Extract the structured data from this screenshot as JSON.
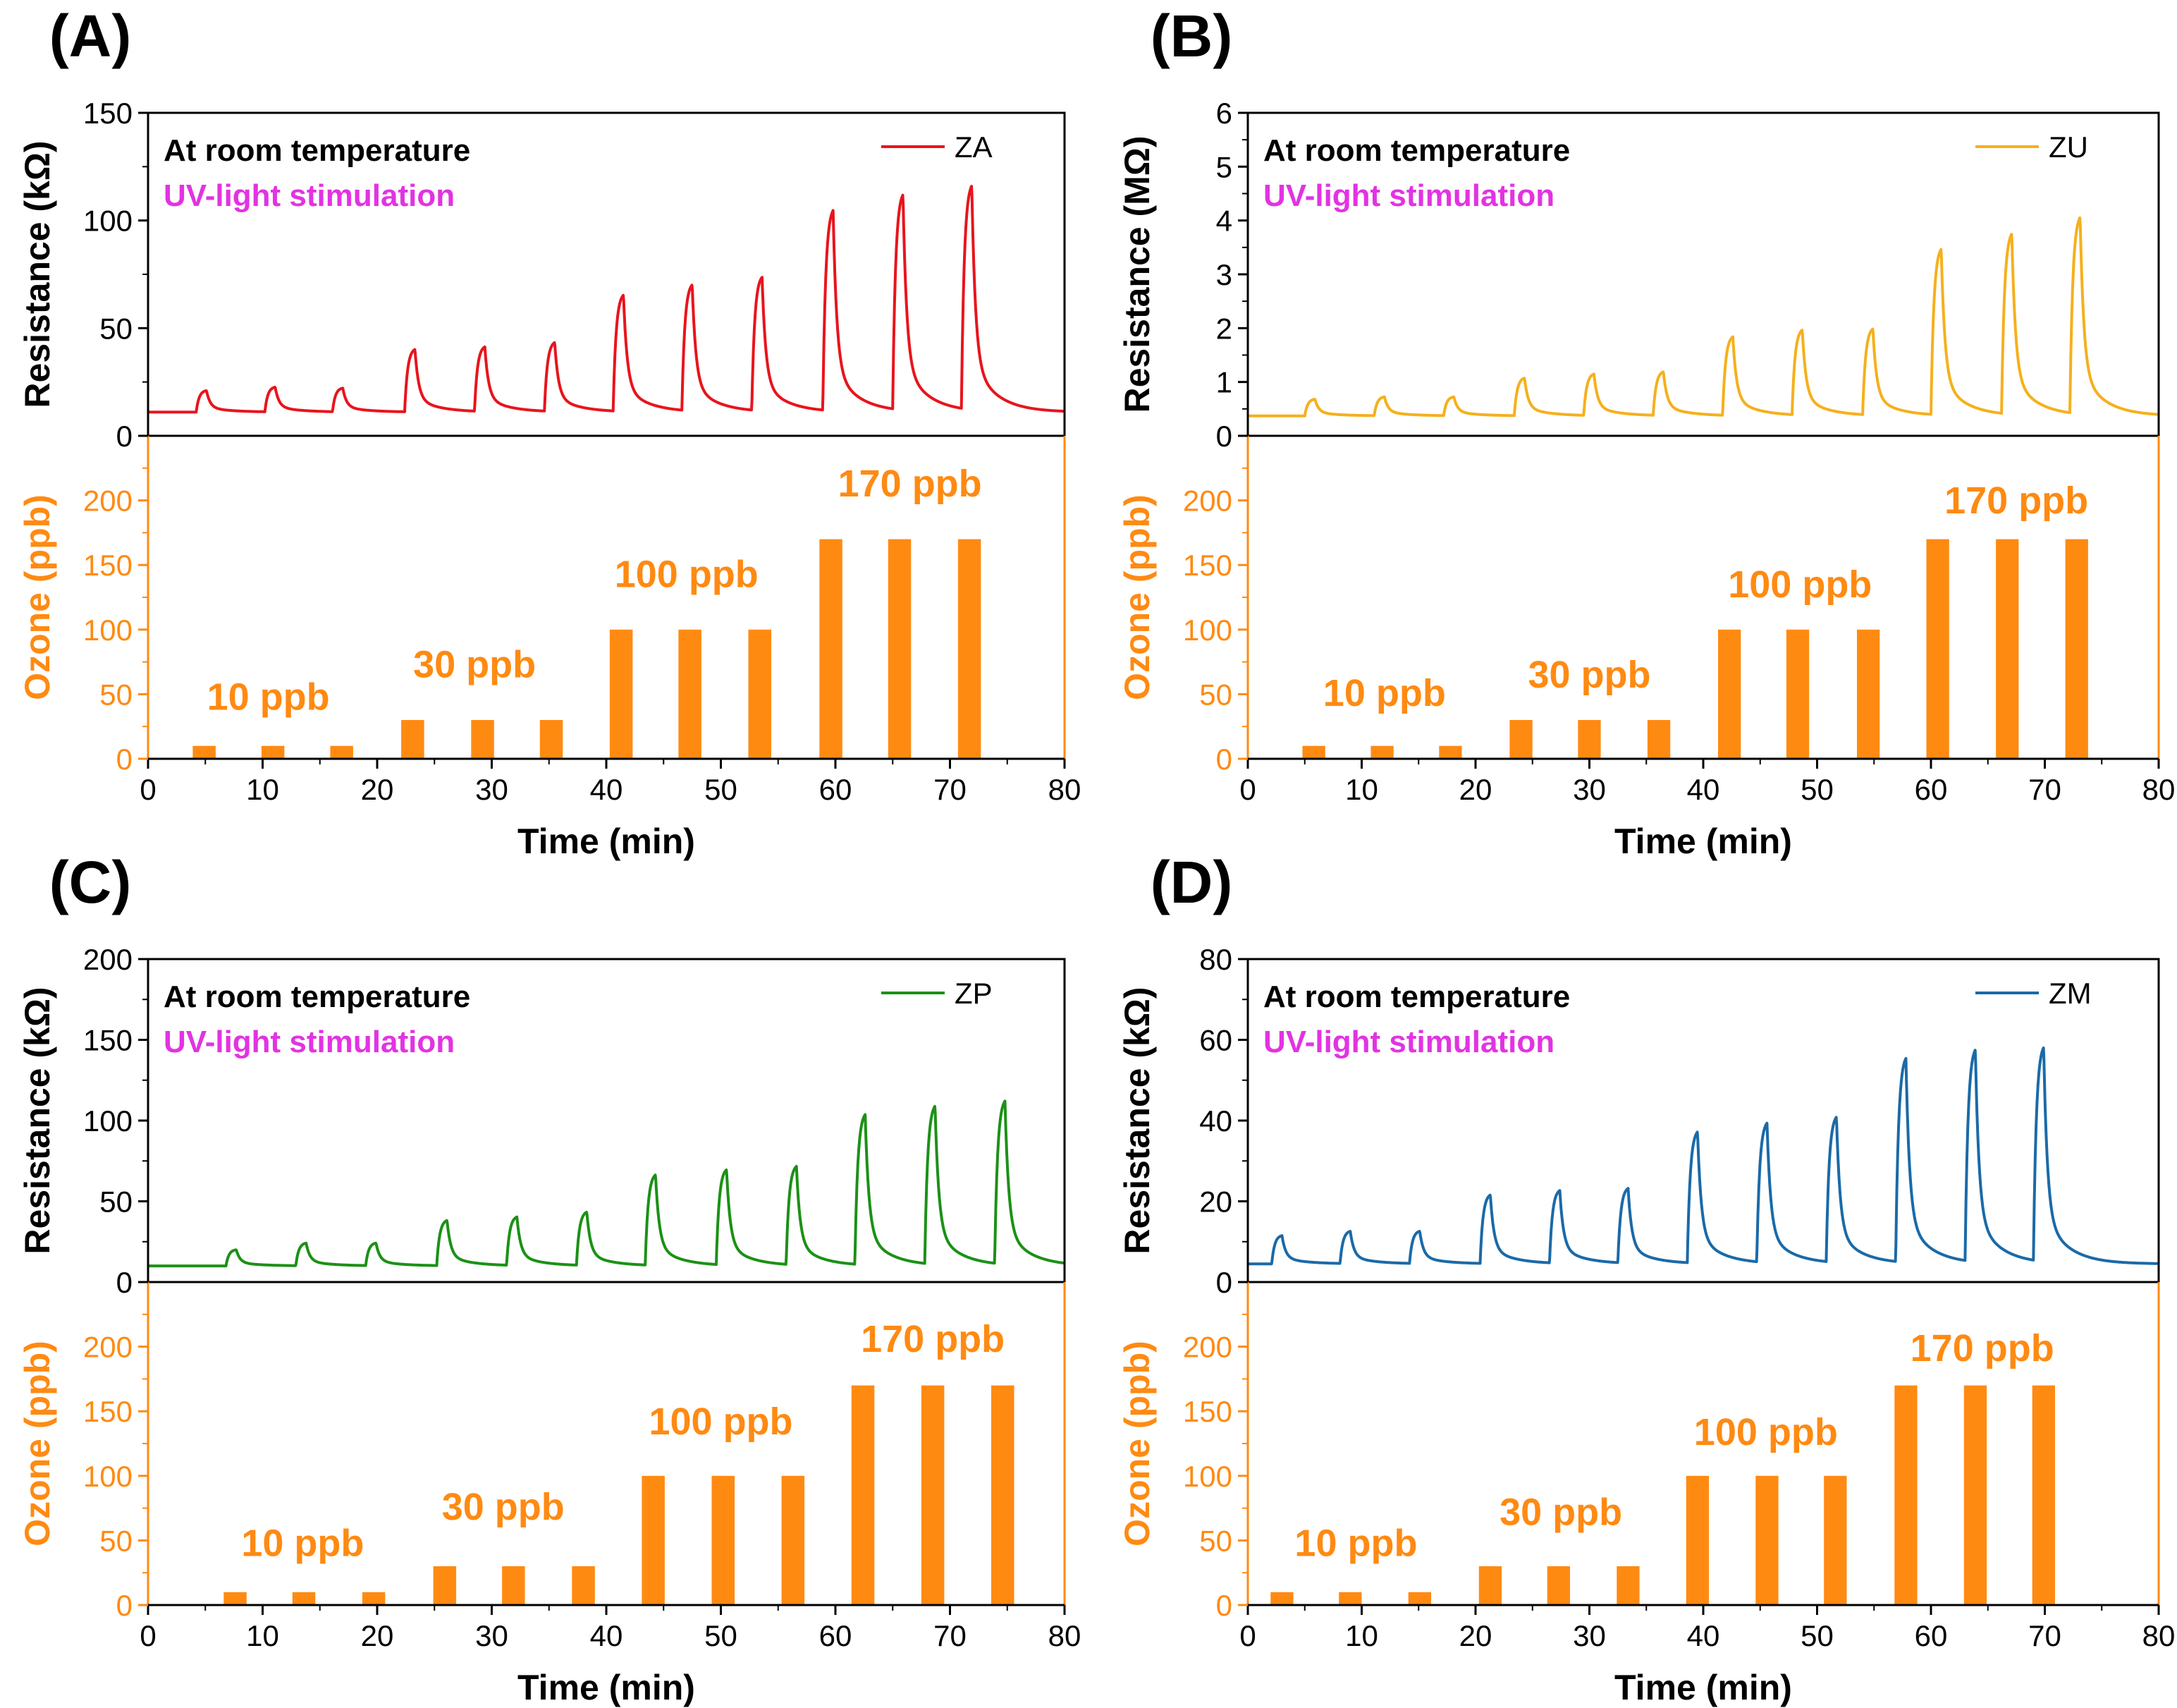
{
  "chart_data": [
    {
      "type": "line+bar",
      "panel_label": "(A)",
      "top": {
        "series_name": "ZA",
        "color": "#e8141c",
        "ylabel": "Resistance (kΩ)",
        "ylim": [
          0,
          150
        ],
        "yticks": [
          0,
          50,
          100,
          150
        ],
        "annotations": [
          "At room temperature",
          "UV-light stimulation"
        ],
        "baseline": 11,
        "pulses": [
          {
            "start": 4.2,
            "peak": 21
          },
          {
            "start": 10.2,
            "peak": 22.5
          },
          {
            "start": 16.1,
            "peak": 22
          },
          {
            "start": 22.4,
            "peak": 40
          },
          {
            "start": 28.5,
            "peak": 41
          },
          {
            "start": 34.6,
            "peak": 43
          },
          {
            "start": 40.6,
            "peak": 65
          },
          {
            "start": 46.6,
            "peak": 69.5
          },
          {
            "start": 52.7,
            "peak": 73
          },
          {
            "start": 58.9,
            "peak": 104
          },
          {
            "start": 65.0,
            "peak": 111
          },
          {
            "start": 71.0,
            "peak": 115
          }
        ]
      },
      "bottom": {
        "ylabel": "Ozone (ppb)",
        "ylim": [
          0,
          250
        ],
        "yticks": [
          0,
          50,
          100,
          150,
          200
        ],
        "bar_color": "#ff8a12",
        "bars": [
          {
            "x": 4.9,
            "value": 10
          },
          {
            "x": 10.9,
            "value": 10
          },
          {
            "x": 16.9,
            "value": 10
          },
          {
            "x": 23.1,
            "value": 30
          },
          {
            "x": 29.2,
            "value": 30
          },
          {
            "x": 35.2,
            "value": 30
          },
          {
            "x": 41.3,
            "value": 100
          },
          {
            "x": 47.3,
            "value": 100
          },
          {
            "x": 53.4,
            "value": 100
          },
          {
            "x": 59.6,
            "value": 170
          },
          {
            "x": 65.6,
            "value": 170
          },
          {
            "x": 71.7,
            "value": 170
          }
        ],
        "labels": [
          {
            "text": "10 ppb",
            "x": 10.5,
            "y": 38
          },
          {
            "text": "30 ppb",
            "x": 28.5,
            "y": 63
          },
          {
            "text": "100 ppb",
            "x": 47.0,
            "y": 133
          },
          {
            "text": "170 ppb",
            "x": 66.5,
            "y": 203
          }
        ]
      },
      "xlabel": "Time (min)",
      "xlim": [
        0,
        80
      ],
      "xticks": [
        0,
        10,
        20,
        30,
        40,
        50,
        60,
        70,
        80
      ]
    },
    {
      "type": "line+bar",
      "panel_label": "(B)",
      "top": {
        "series_name": "ZU",
        "color": "#f5b01c",
        "ylabel": "Resistance (MΩ)",
        "ylim": [
          0,
          6
        ],
        "yticks": [
          0,
          1,
          2,
          3,
          4,
          5,
          6
        ],
        "annotations": [
          "At room temperature",
          "UV-light stimulation"
        ],
        "baseline": 0.37,
        "pulses": [
          {
            "start": 5.0,
            "peak": 0.68
          },
          {
            "start": 11.1,
            "peak": 0.72
          },
          {
            "start": 17.2,
            "peak": 0.72
          },
          {
            "start": 23.4,
            "peak": 1.07
          },
          {
            "start": 29.5,
            "peak": 1.14
          },
          {
            "start": 35.6,
            "peak": 1.18
          },
          {
            "start": 41.7,
            "peak": 1.83
          },
          {
            "start": 47.8,
            "peak": 1.95
          },
          {
            "start": 54.0,
            "peak": 1.97
          },
          {
            "start": 60.0,
            "peak": 3.45
          },
          {
            "start": 66.2,
            "peak": 3.72
          },
          {
            "start": 72.2,
            "peak": 4.02
          }
        ]
      },
      "bottom": {
        "ylabel": "Ozone (ppb)",
        "ylim": [
          0,
          250
        ],
        "yticks": [
          0,
          50,
          100,
          150,
          200
        ],
        "bar_color": "#ff8a12",
        "bars": [
          {
            "x": 5.8,
            "value": 10
          },
          {
            "x": 11.8,
            "value": 10
          },
          {
            "x": 17.8,
            "value": 10
          },
          {
            "x": 24.0,
            "value": 30
          },
          {
            "x": 30.0,
            "value": 30
          },
          {
            "x": 36.1,
            "value": 30
          },
          {
            "x": 42.3,
            "value": 100
          },
          {
            "x": 48.3,
            "value": 100
          },
          {
            "x": 54.5,
            "value": 100
          },
          {
            "x": 60.6,
            "value": 170
          },
          {
            "x": 66.7,
            "value": 170
          },
          {
            "x": 72.8,
            "value": 170
          }
        ],
        "labels": [
          {
            "text": "10 ppb",
            "x": 12.0,
            "y": 41
          },
          {
            "text": "30 ppb",
            "x": 30.0,
            "y": 55
          },
          {
            "text": "100 ppb",
            "x": 48.5,
            "y": 125
          },
          {
            "text": "170 ppb",
            "x": 67.5,
            "y": 190
          }
        ]
      },
      "xlabel": "Time (min)",
      "xlim": [
        0,
        80
      ],
      "xticks": [
        0,
        10,
        20,
        30,
        40,
        50,
        60,
        70,
        80
      ]
    },
    {
      "type": "line+bar",
      "panel_label": "(C)",
      "top": {
        "series_name": "ZP",
        "color": "#1b9116",
        "ylabel": "Resistance (kΩ)",
        "ylim": [
          0,
          200
        ],
        "yticks": [
          0,
          50,
          100,
          150,
          200
        ],
        "annotations": [
          "At room temperature",
          "UV-light stimulation"
        ],
        "baseline": 10,
        "pulses": [
          {
            "start": 6.8,
            "peak": 20
          },
          {
            "start": 12.9,
            "peak": 24
          },
          {
            "start": 19.0,
            "peak": 24
          },
          {
            "start": 25.2,
            "peak": 38
          },
          {
            "start": 31.3,
            "peak": 40
          },
          {
            "start": 37.4,
            "peak": 43
          },
          {
            "start": 43.4,
            "peak": 66
          },
          {
            "start": 49.6,
            "peak": 69
          },
          {
            "start": 55.7,
            "peak": 71
          },
          {
            "start": 61.7,
            "peak": 103
          },
          {
            "start": 67.8,
            "peak": 108
          },
          {
            "start": 73.9,
            "peak": 111
          }
        ]
      },
      "bottom": {
        "ylabel": "Ozone (ppb)",
        "ylim": [
          0,
          250
        ],
        "yticks": [
          0,
          50,
          100,
          150,
          200
        ],
        "bar_color": "#ff8a12",
        "bars": [
          {
            "x": 7.6,
            "value": 10
          },
          {
            "x": 13.6,
            "value": 10
          },
          {
            "x": 19.7,
            "value": 10
          },
          {
            "x": 25.9,
            "value": 30
          },
          {
            "x": 31.9,
            "value": 30
          },
          {
            "x": 38.0,
            "value": 30
          },
          {
            "x": 44.1,
            "value": 100
          },
          {
            "x": 50.2,
            "value": 100
          },
          {
            "x": 56.3,
            "value": 100
          },
          {
            "x": 62.4,
            "value": 170
          },
          {
            "x": 68.5,
            "value": 170
          },
          {
            "x": 74.6,
            "value": 170
          }
        ],
        "labels": [
          {
            "text": "10 ppb",
            "x": 13.5,
            "y": 38
          },
          {
            "text": "30 ppb",
            "x": 31.0,
            "y": 66
          },
          {
            "text": "100 ppb",
            "x": 50.0,
            "y": 132
          },
          {
            "text": "170 ppb",
            "x": 68.5,
            "y": 196
          }
        ]
      },
      "xlabel": "Time (min)",
      "xlim": [
        0,
        80
      ],
      "xticks": [
        0,
        10,
        20,
        30,
        40,
        50,
        60,
        70,
        80
      ]
    },
    {
      "type": "line+bar",
      "panel_label": "(D)",
      "top": {
        "series_name": "ZM",
        "color": "#1a6aa8",
        "ylabel": "Resistance (kΩ)",
        "ylim": [
          0,
          80
        ],
        "yticks": [
          0,
          20,
          40,
          60,
          80
        ],
        "annotations": [
          "At room temperature",
          "UV-light stimulation"
        ],
        "baseline": 4.5,
        "pulses": [
          {
            "start": 2.1,
            "peak": 11.5
          },
          {
            "start": 8.1,
            "peak": 12.5
          },
          {
            "start": 14.2,
            "peak": 12.5
          },
          {
            "start": 20.4,
            "peak": 21.5
          },
          {
            "start": 26.5,
            "peak": 22.5
          },
          {
            "start": 32.5,
            "peak": 23
          },
          {
            "start": 38.6,
            "peak": 37
          },
          {
            "start": 44.7,
            "peak": 39
          },
          {
            "start": 50.8,
            "peak": 40.5
          },
          {
            "start": 56.9,
            "peak": 55
          },
          {
            "start": 63.0,
            "peak": 57
          },
          {
            "start": 69.0,
            "peak": 57.5
          }
        ]
      },
      "bottom": {
        "ylabel": "Ozone (ppb)",
        "ylim": [
          0,
          250
        ],
        "yticks": [
          0,
          50,
          100,
          150,
          200
        ],
        "bar_color": "#ff8a12",
        "bars": [
          {
            "x": 3.0,
            "value": 10
          },
          {
            "x": 9.0,
            "value": 10
          },
          {
            "x": 15.1,
            "value": 10
          },
          {
            "x": 21.3,
            "value": 30
          },
          {
            "x": 27.3,
            "value": 30
          },
          {
            "x": 33.4,
            "value": 30
          },
          {
            "x": 39.5,
            "value": 100
          },
          {
            "x": 45.6,
            "value": 100
          },
          {
            "x": 51.6,
            "value": 100
          },
          {
            "x": 57.8,
            "value": 170
          },
          {
            "x": 63.9,
            "value": 170
          },
          {
            "x": 69.9,
            "value": 170
          }
        ],
        "labels": [
          {
            "text": "10 ppb",
            "x": 9.5,
            "y": 38
          },
          {
            "text": "30 ppb",
            "x": 27.5,
            "y": 62
          },
          {
            "text": "100 ppb",
            "x": 45.5,
            "y": 124
          },
          {
            "text": "170 ppb",
            "x": 64.5,
            "y": 189
          }
        ]
      },
      "xlabel": "Time (min)",
      "xlim": [
        0,
        80
      ],
      "xticks": [
        0,
        10,
        20,
        30,
        40,
        50,
        60,
        70,
        80
      ]
    }
  ]
}
